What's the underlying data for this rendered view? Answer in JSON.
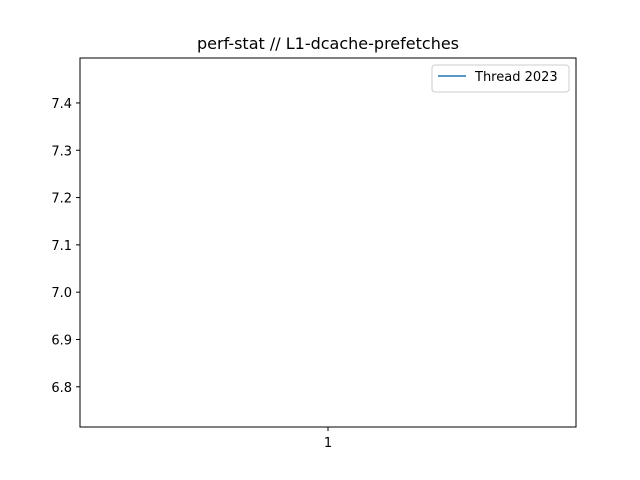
{
  "chart_data": {
    "type": "line",
    "title": "perf-stat // L1-dcache-prefetches",
    "xlabel": "",
    "ylabel": "",
    "x_ticks": [
      "1"
    ],
    "y_ticks": [
      "6.8",
      "6.9",
      "7.0",
      "7.1",
      "7.2",
      "7.3",
      "7.4"
    ],
    "xlim": [
      0.5,
      1.5
    ],
    "ylim": [
      6.715,
      7.495
    ],
    "grid": false,
    "legend_position": "top-right",
    "series": [
      {
        "name": "Thread 2023",
        "color": "#1f77b4",
        "x": [],
        "y": []
      }
    ]
  }
}
